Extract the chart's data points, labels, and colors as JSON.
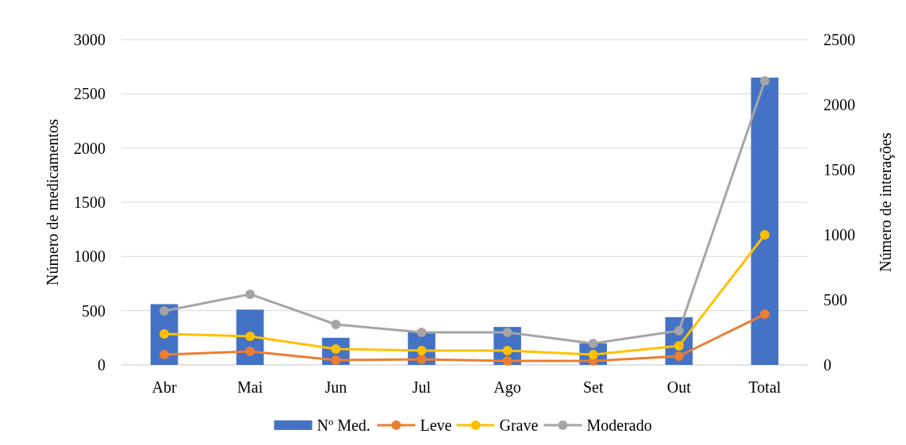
{
  "chart_data": {
    "type": "bar",
    "categories": [
      "Abr",
      "Mai",
      "Jun",
      "Jul",
      "Ago",
      "Set",
      "Out",
      "Total"
    ],
    "ylabel": "Número de medicamentos",
    "y2label": "Número de interações",
    "ylim": [
      0,
      3000
    ],
    "yticks": [
      0,
      500,
      1000,
      1500,
      2000,
      2500,
      3000
    ],
    "y2lim": [
      0,
      2500
    ],
    "y2ticks": [
      0,
      500,
      1000,
      1500,
      2000,
      2500
    ],
    "grid": "y",
    "legend": "bottom",
    "marker": "circle",
    "series": [
      {
        "name": "Nº Med.",
        "color": "#4472c4",
        "values": [
          560,
          510,
          250,
          300,
          350,
          200,
          440,
          2650
        ]
      },
      {
        "name": "Leve",
        "type": "line",
        "axis": "y2",
        "color": "#ed7d31",
        "values": [
          79,
          104,
          37,
          43,
          30,
          30,
          67,
          390
        ]
      },
      {
        "name": "Grave",
        "type": "line",
        "axis": "y2",
        "color": "#ffc000",
        "values": [
          238,
          220,
          122,
          110,
          110,
          79,
          146,
          1000
        ]
      },
      {
        "name": "Moderado",
        "type": "line",
        "axis": "y2",
        "color": "#a5a5a5",
        "values": [
          415,
          543,
          311,
          250,
          250,
          165,
          262,
          2183
        ]
      }
    ]
  }
}
